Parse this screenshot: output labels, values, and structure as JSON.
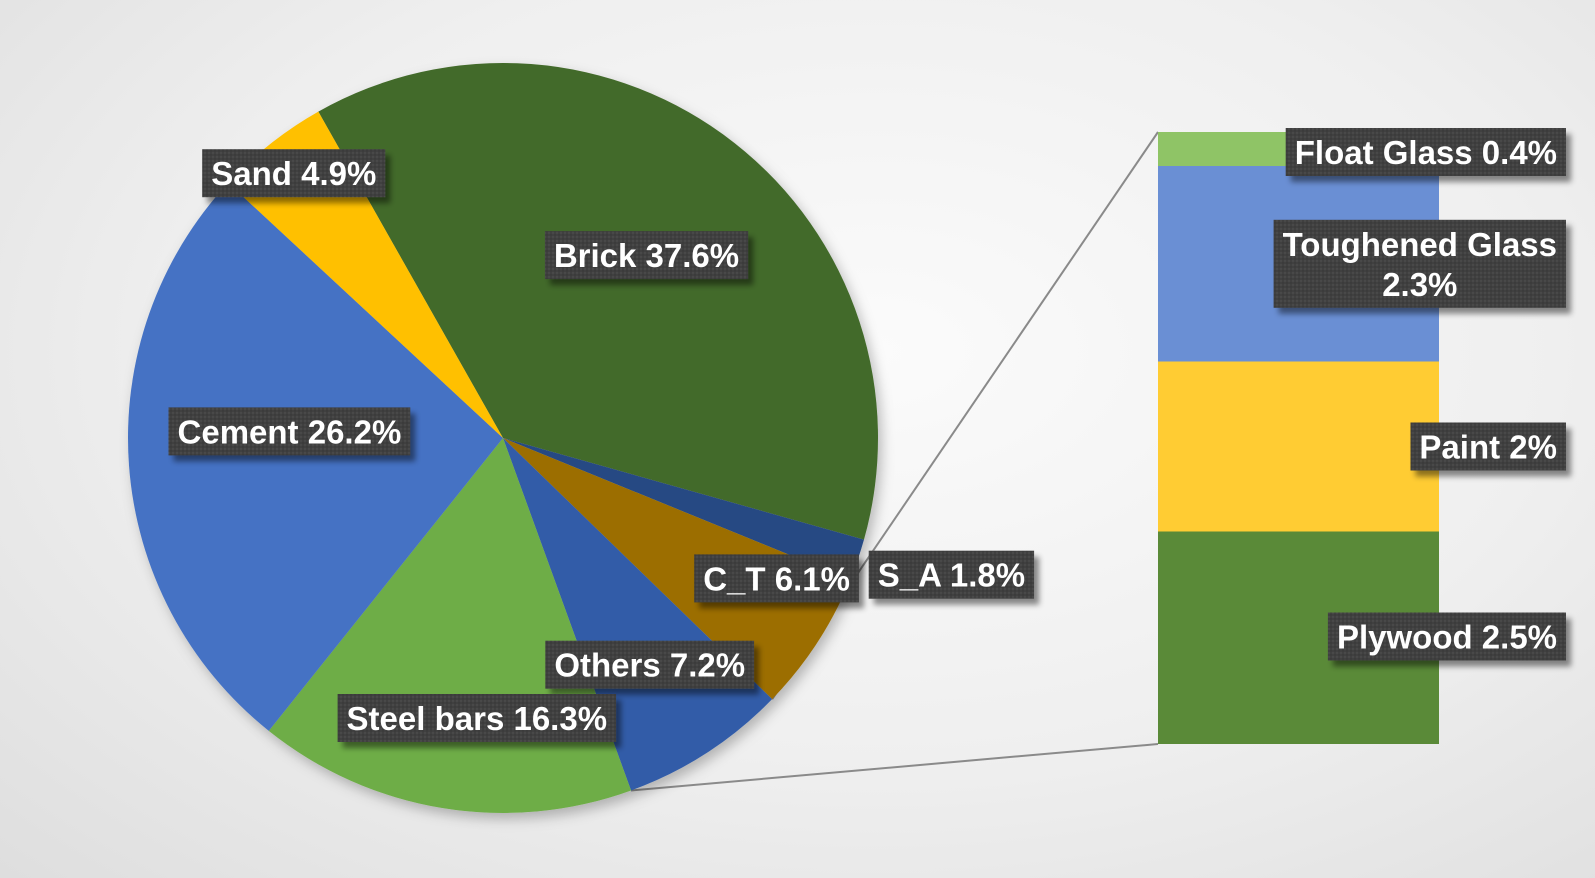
{
  "chart_data": {
    "type": "pie",
    "subtype": "bar-of-pie",
    "pie": {
      "slices": [
        {
          "name": "Brick",
          "value": 37.6,
          "label": "Brick 37.6%",
          "color": "#436b2a"
        },
        {
          "name": "S_A",
          "value": 1.8,
          "label": "S_A  1.8%",
          "color": "#284a83"
        },
        {
          "name": "C_T",
          "value": 6.1,
          "label": "C_T  6.1%",
          "color": "#9c6e00"
        },
        {
          "name": "Others",
          "value": 7.2,
          "label": "Others 7.2%",
          "color": "#305ca8"
        },
        {
          "name": "Steel bars",
          "value": 16.3,
          "label": "Steel bars 16.3%",
          "color": "#6ead47"
        },
        {
          "name": "Cement",
          "value": 26.2,
          "label": "Cement  26.2%",
          "color": "#4472c4"
        },
        {
          "name": "Sand",
          "value": 4.9,
          "label": "Sand 4.9%",
          "color": "#ffc000"
        }
      ]
    },
    "bar": {
      "segments": [
        {
          "name": "Float Glass",
          "value": 0.4,
          "label": "Float Glass 0.4%",
          "color": "#8fc466"
        },
        {
          "name": "Toughened Glass",
          "value": 2.3,
          "label_lines": [
            "Toughened Glass",
            "2.3%"
          ],
          "color": "#6a8fd4"
        },
        {
          "name": "Paint",
          "value": 2.0,
          "label": "Paint  2%",
          "color": "#ffcc33"
        },
        {
          "name": "Plywood",
          "value": 2.5,
          "label": "Plywood 2.5%",
          "color": "#5a8a38"
        }
      ]
    }
  }
}
